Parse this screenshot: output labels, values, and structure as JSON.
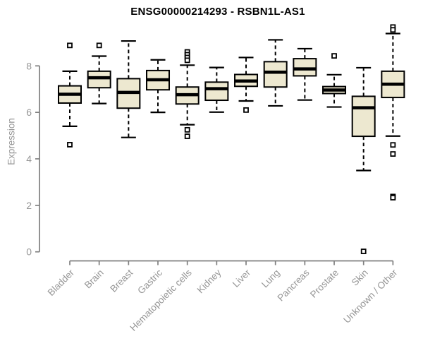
{
  "chart_data": {
    "type": "boxplot",
    "title": "ENSG00000214293 - RSBN1L-AS1",
    "xlabel": "",
    "ylabel": "Expression",
    "ylim": [
      0,
      9.7
    ],
    "yticks": [
      0,
      2,
      4,
      6,
      8
    ],
    "grid": false,
    "legend": null,
    "colors": {
      "box_fill": "#EDE8D0",
      "box_border": "#000000",
      "median": "#000000",
      "whisker": "#000000",
      "outlier": "#000000",
      "axis_line": "#7F7F7F",
      "tick_text": "#969696",
      "title_text": "#000000",
      "background": "#FFFFFF"
    },
    "categories": [
      "Bladder",
      "Brain",
      "Breast",
      "Gastric",
      "Hematopoietic cells",
      "Kidney",
      "Liver",
      "Lung",
      "Pancreas",
      "Prostate",
      "Skin",
      "Unknown / Other"
    ],
    "series": [
      {
        "category": "Bladder",
        "whisker_low": 5.4,
        "q1": 6.4,
        "median": 6.78,
        "q3": 7.14,
        "whisker_high": 7.77,
        "outliers": [
          8.88,
          4.61
        ]
      },
      {
        "category": "Brain",
        "whisker_low": 6.38,
        "q1": 7.06,
        "median": 7.49,
        "q3": 7.77,
        "whisker_high": 8.42,
        "outliers": [
          8.88
        ]
      },
      {
        "category": "Breast",
        "whisker_low": 4.92,
        "q1": 6.18,
        "median": 6.86,
        "q3": 7.45,
        "whisker_high": 9.07,
        "outliers": []
      },
      {
        "category": "Gastric",
        "whisker_low": 6.0,
        "q1": 6.97,
        "median": 7.4,
        "q3": 7.8,
        "whisker_high": 8.26,
        "outliers": []
      },
      {
        "category": "Hematopoietic cells",
        "whisker_low": 5.47,
        "q1": 6.36,
        "median": 6.76,
        "q3": 7.09,
        "whisker_high": 8.03,
        "outliers": [
          8.6,
          8.48,
          8.36,
          8.24,
          5.25,
          4.97
        ]
      },
      {
        "category": "Kidney",
        "whisker_low": 6.01,
        "q1": 6.52,
        "median": 7.02,
        "q3": 7.3,
        "whisker_high": 7.93,
        "outliers": []
      },
      {
        "category": "Liver",
        "whisker_low": 6.49,
        "q1": 7.12,
        "median": 7.35,
        "q3": 7.63,
        "whisker_high": 8.36,
        "outliers": [
          6.1
        ]
      },
      {
        "category": "Lung",
        "whisker_low": 6.28,
        "q1": 7.09,
        "median": 7.73,
        "q3": 8.18,
        "whisker_high": 9.12,
        "outliers": []
      },
      {
        "category": "Pancreas",
        "whisker_low": 6.53,
        "q1": 7.57,
        "median": 7.87,
        "q3": 8.31,
        "whisker_high": 8.74,
        "outliers": []
      },
      {
        "category": "Prostate",
        "whisker_low": 6.23,
        "q1": 6.81,
        "median": 6.96,
        "q3": 7.11,
        "whisker_high": 7.62,
        "outliers": [
          8.43
        ]
      },
      {
        "category": "Skin",
        "whisker_low": 3.5,
        "q1": 4.97,
        "median": 6.2,
        "q3": 6.69,
        "whisker_high": 7.92,
        "outliers": [
          0.02
        ]
      },
      {
        "category": "Unknown / Other",
        "whisker_low": 4.98,
        "q1": 6.64,
        "median": 7.21,
        "q3": 7.77,
        "whisker_high": 9.39,
        "outliers": [
          9.67,
          9.55,
          4.6,
          4.21,
          2.38,
          2.33
        ]
      }
    ]
  }
}
